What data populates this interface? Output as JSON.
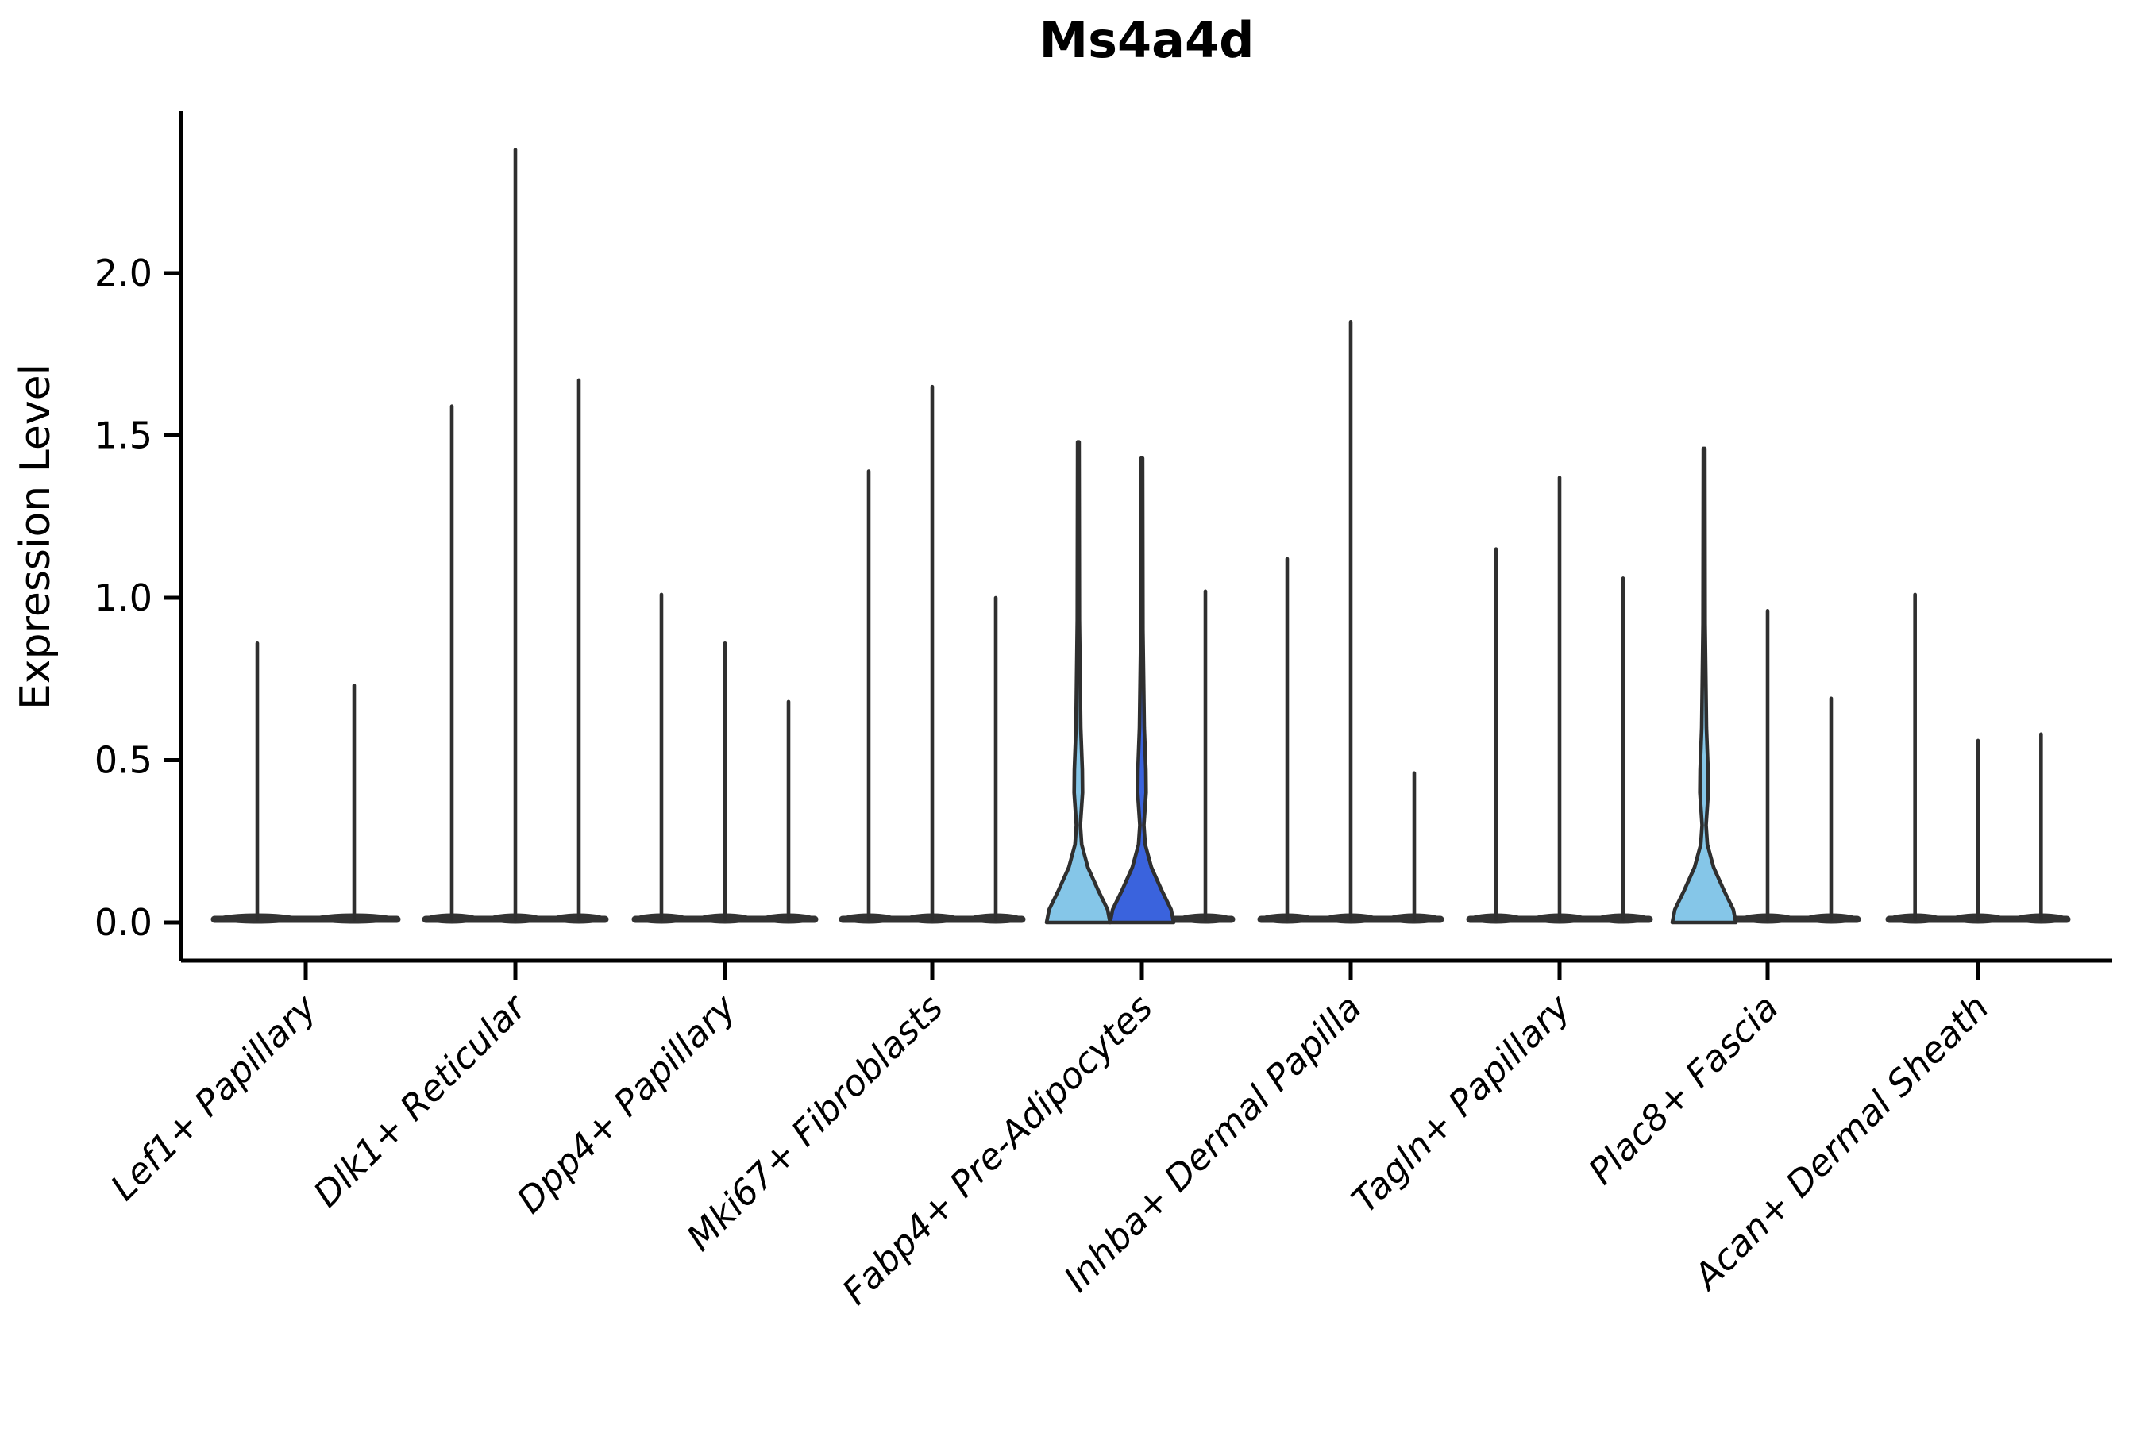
{
  "chart_data": {
    "type": "violin",
    "title": "Ms4a4d",
    "ylabel": "Expression Level",
    "xlabel": "",
    "ylim": [
      0,
      2.5
    ],
    "yticks": [
      "0.0",
      "0.5",
      "1.0",
      "1.5",
      "2.0"
    ],
    "ytick_values": [
      0.0,
      0.5,
      1.0,
      1.5,
      2.0
    ],
    "grid": "off",
    "legend": "none",
    "palette": {
      "highlight_light": "#85C6E8",
      "highlight_dark": "#3A63DD",
      "violin_outline": "#2F2F2F",
      "baseline": "#333333",
      "axis": "#000000",
      "background": "#FFFFFF"
    },
    "groups": [
      {
        "label": "Lef1+ Papillary",
        "violins": [
          {
            "peak": 0.86,
            "fill": "plain"
          },
          {
            "peak": 0.73,
            "fill": "plain"
          }
        ]
      },
      {
        "label": "Dlk1+ Reticular",
        "violins": [
          {
            "peak": 1.59,
            "fill": "plain"
          },
          {
            "peak": 2.38,
            "fill": "plain"
          },
          {
            "peak": 1.67,
            "fill": "plain"
          }
        ]
      },
      {
        "label": "Dpp4+ Papillary",
        "violins": [
          {
            "peak": 1.01,
            "fill": "plain"
          },
          {
            "peak": 0.86,
            "fill": "plain"
          },
          {
            "peak": 0.68,
            "fill": "plain"
          }
        ]
      },
      {
        "label": "Mki67+ Fibroblasts",
        "violins": [
          {
            "peak": 1.39,
            "fill": "plain"
          },
          {
            "peak": 1.65,
            "fill": "plain"
          },
          {
            "peak": 1.0,
            "fill": "plain"
          }
        ]
      },
      {
        "label": "Fabp4+ Pre-Adipocytes",
        "violins": [
          {
            "peak": 1.48,
            "fill": "highlight_light"
          },
          {
            "peak": 1.43,
            "fill": "highlight_dark"
          },
          {
            "peak": 1.02,
            "fill": "plain"
          }
        ]
      },
      {
        "label": "Inhba+ Dermal Papilla",
        "violins": [
          {
            "peak": 1.12,
            "fill": "plain"
          },
          {
            "peak": 1.85,
            "fill": "plain"
          },
          {
            "peak": 0.46,
            "fill": "plain"
          }
        ]
      },
      {
        "label": "Tagln+ Papillary",
        "violins": [
          {
            "peak": 1.15,
            "fill": "plain"
          },
          {
            "peak": 1.37,
            "fill": "plain"
          },
          {
            "peak": 1.06,
            "fill": "plain"
          }
        ]
      },
      {
        "label": "Plac8+ Fascia",
        "violins": [
          {
            "peak": 1.46,
            "fill": "highlight_light"
          },
          {
            "peak": 0.96,
            "fill": "plain"
          },
          {
            "peak": 0.69,
            "fill": "plain"
          }
        ]
      },
      {
        "label": "Acan+ Dermal Sheath",
        "violins": [
          {
            "peak": 1.01,
            "fill": "plain"
          },
          {
            "peak": 0.56,
            "fill": "plain"
          },
          {
            "peak": 0.58,
            "fill": "plain"
          }
        ]
      }
    ]
  }
}
